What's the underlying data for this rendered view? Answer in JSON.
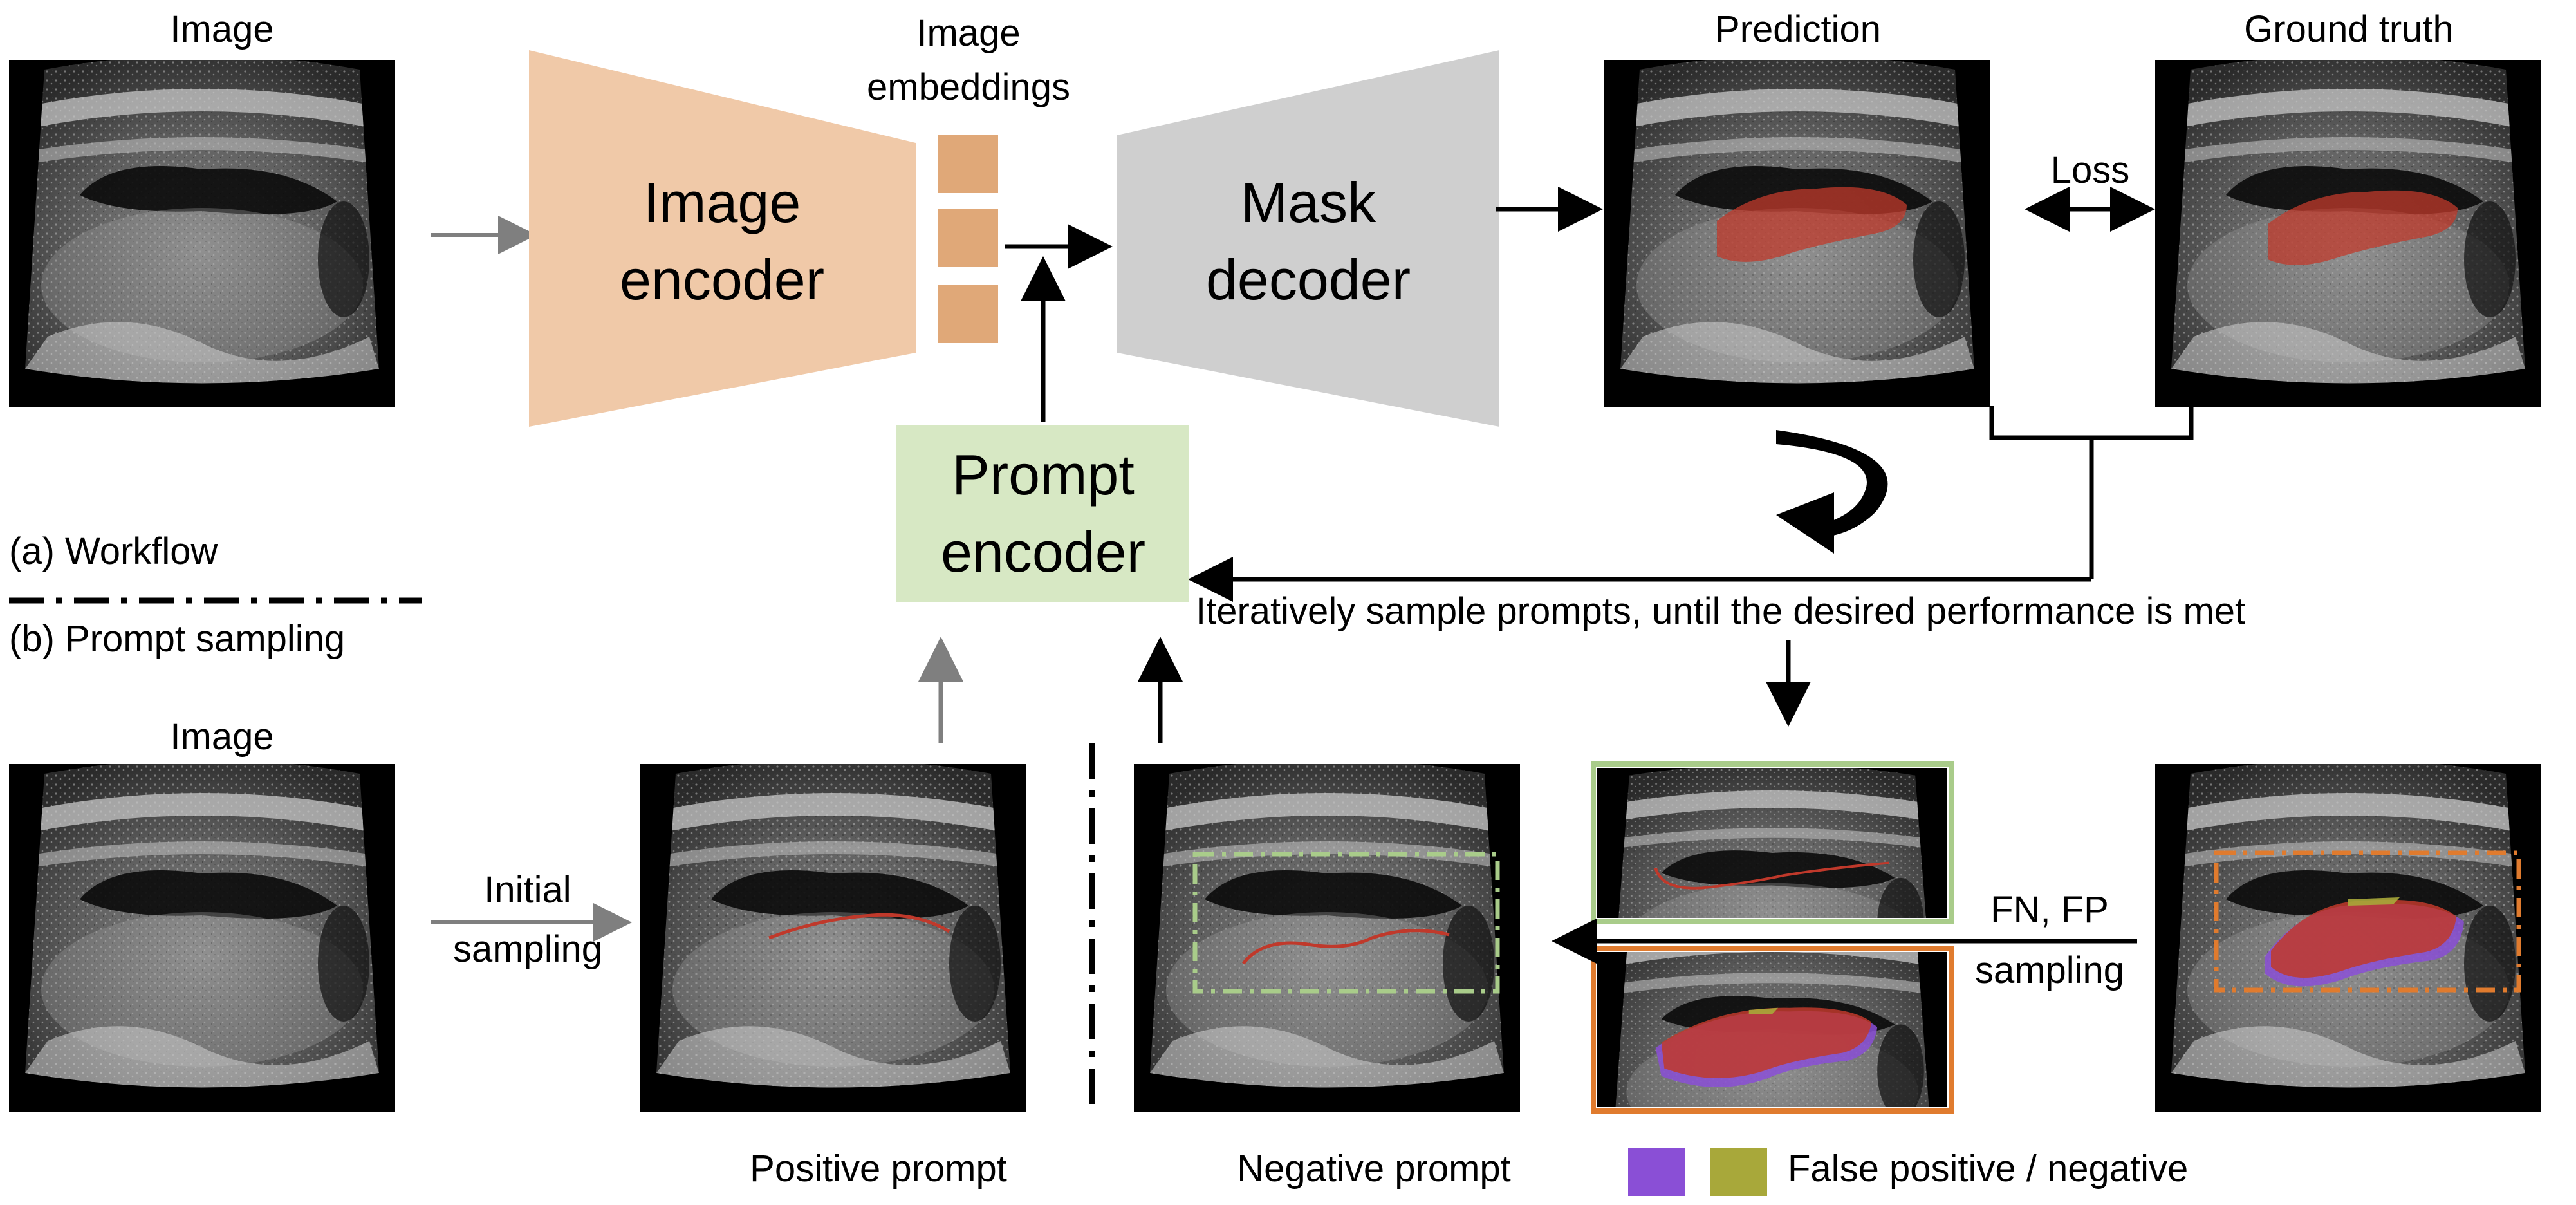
{
  "workflow": {
    "image_label": "Image",
    "embeddings_label": [
      "Image",
      "embeddings"
    ],
    "image_encoder_label": [
      "Image",
      "encoder"
    ],
    "mask_decoder_label": [
      "Mask",
      "decoder"
    ],
    "prompt_encoder_label": [
      "Prompt",
      "encoder"
    ],
    "prediction_label": "Prediction",
    "ground_truth_label": "Ground truth",
    "loss_label": "Loss",
    "iterate_caption": "Iteratively sample prompts, until the desired performance is met"
  },
  "section_labels": {
    "workflow": "(a) Workflow",
    "prompt_sampling": "(b) Prompt sampling"
  },
  "sampling": {
    "image_label": "Image",
    "initial_sampling_label": [
      "Initial",
      "sampling"
    ],
    "positive_prompt_label": "Positive prompt",
    "negative_prompt_label": "Negative prompt",
    "fn_fp_label": [
      "FN, FP",
      "sampling"
    ],
    "legend_label": "False positive / negative"
  },
  "colors": {
    "encoder_fill": "#f0c9a8",
    "embedding_fill": "#e0a878",
    "decoder_fill": "#cfcfcf",
    "prompt_encoder_fill": "#d7e8c4",
    "mask_red": "#c0392b",
    "false_positive": "#8a4fd6",
    "false_negative": "#a8a83a",
    "frame_green": "#a9cc8a",
    "frame_orange": "#e07b2e",
    "arrow_gray": "#7f7f7f"
  }
}
